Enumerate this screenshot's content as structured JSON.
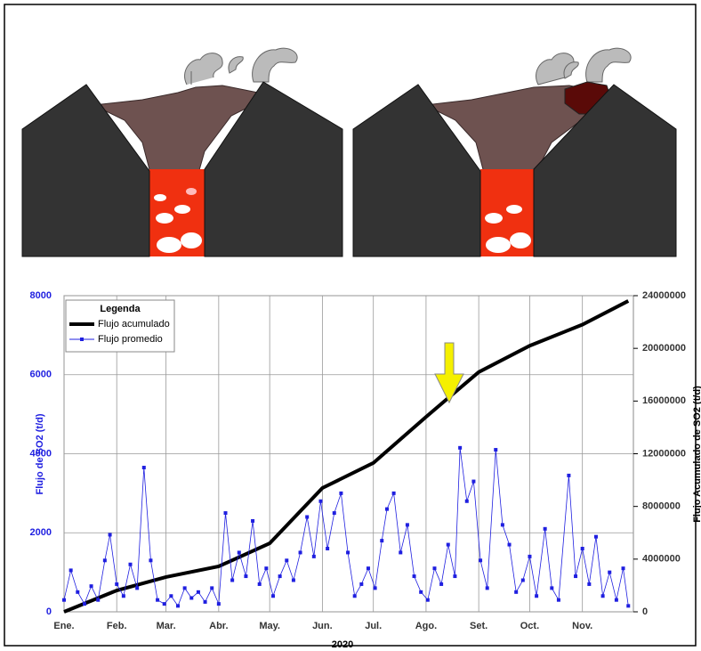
{
  "chart_data": {
    "type": "line",
    "legend_title": "Legenda",
    "ylabel": "Flujo de SO2 (t/d)",
    "y2label": "Flujo Acumulado de SO2 (t/d)",
    "xlabel": "2020",
    "xlim": [
      0,
      335
    ],
    "xticks": [
      {
        "value": 0,
        "label": "Ene."
      },
      {
        "value": 31,
        "label": "Feb."
      },
      {
        "value": 60,
        "label": "Mar."
      },
      {
        "value": 91,
        "label": "Abr."
      },
      {
        "value": 121,
        "label": "May."
      },
      {
        "value": 152,
        "label": "Jun."
      },
      {
        "value": 182,
        "label": "Jul."
      },
      {
        "value": 213,
        "label": "Ago."
      },
      {
        "value": 244,
        "label": "Set."
      },
      {
        "value": 274,
        "label": "Oct."
      },
      {
        "value": 305,
        "label": "Nov."
      }
    ],
    "ylim": [
      0,
      8000
    ],
    "yticks": [
      0,
      2000,
      4000,
      6000,
      8000
    ],
    "y2lim": [
      0,
      24000000
    ],
    "y2ticks": [
      0,
      4000000,
      8000000,
      12000000,
      16000000,
      20000000,
      24000000
    ],
    "grid": true,
    "legend": "upper left",
    "series": [
      {
        "name": "Flujo acumulado",
        "color": "#000000",
        "axis": "y2",
        "x": [
          0,
          31,
          60,
          91,
          121,
          152,
          182,
          213,
          244,
          274,
          305,
          332
        ],
        "values": [
          0,
          1620000,
          2640000,
          3450000,
          5200000,
          9400000,
          11300000,
          14800000,
          18200000,
          20200000,
          21800000,
          23600000
        ]
      },
      {
        "name": "Flujo promedio",
        "color": "#1f1fe0",
        "x": [
          0,
          4,
          8,
          12,
          16,
          20,
          24,
          27,
          31,
          35,
          39,
          43,
          47,
          51,
          55,
          59,
          63,
          67,
          71,
          75,
          79,
          83,
          87,
          91,
          95,
          99,
          103,
          107,
          111,
          115,
          119,
          123,
          127,
          131,
          135,
          139,
          143,
          147,
          151,
          155,
          159,
          163,
          167,
          171,
          175,
          179,
          183,
          187,
          190,
          194,
          198,
          202,
          206,
          210,
          214,
          218,
          222,
          226,
          230,
          233,
          237,
          241,
          245,
          249,
          254,
          258,
          262,
          266,
          270,
          274,
          278,
          283,
          287,
          291,
          297,
          301,
          305,
          309,
          313,
          317,
          321,
          325,
          329,
          332
        ],
        "values": [
          300,
          1050,
          500,
          200,
          650,
          300,
          1300,
          1950,
          700,
          400,
          1200,
          600,
          3650,
          1300,
          300,
          200,
          400,
          150,
          600,
          350,
          500,
          250,
          600,
          200,
          2500,
          800,
          1500,
          900,
          2300,
          700,
          1100,
          400,
          900,
          1300,
          800,
          1500,
          2400,
          1400,
          2800,
          1600,
          2500,
          3000,
          1500,
          400,
          700,
          1100,
          600,
          1800,
          2600,
          3000,
          1500,
          2200,
          900,
          500,
          300,
          1100,
          700,
          1700,
          900,
          4150,
          2800,
          3300,
          1300,
          600,
          4100,
          2200,
          1700,
          500,
          800,
          1400,
          400,
          2100,
          600,
          300,
          3450,
          900,
          1600,
          700,
          1900,
          400,
          1000,
          300,
          1100,
          150
        ]
      }
    ]
  }
}
